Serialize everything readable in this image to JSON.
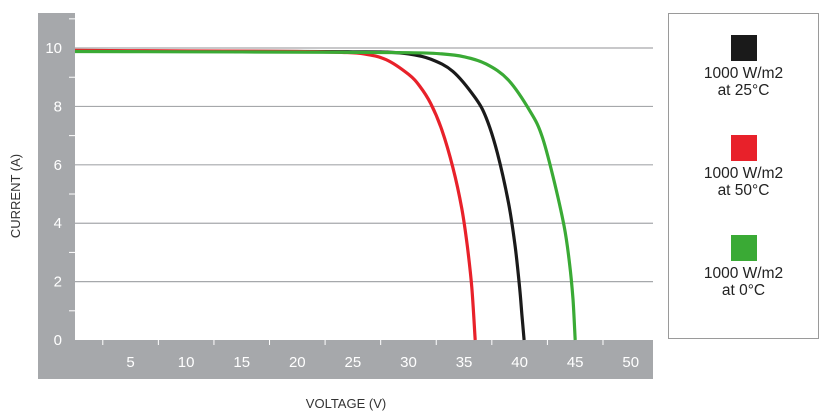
{
  "chart_data": {
    "type": "line",
    "xlabel": "VOLTAGE (V)",
    "ylabel": "CURRENT (A)",
    "xlim": [
      0,
      52
    ],
    "ylim": [
      0,
      11.2
    ],
    "x_ticks": [
      5,
      10,
      15,
      20,
      25,
      30,
      35,
      40,
      45,
      50
    ],
    "y_ticks": [
      0,
      2,
      4,
      6,
      8,
      10
    ],
    "grid": "horizontal",
    "legend_position": "right",
    "series": [
      {
        "name": "1000 W/m2\nat 25°C",
        "color": "#1a1a1a",
        "points": [
          [
            0,
            9.9
          ],
          [
            10,
            9.89
          ],
          [
            20,
            9.88
          ],
          [
            25,
            9.87
          ],
          [
            28,
            9.86
          ],
          [
            30,
            9.8
          ],
          [
            32,
            9.62
          ],
          [
            34,
            9.2
          ],
          [
            36,
            8.3
          ],
          [
            37,
            7.6
          ],
          [
            38,
            6.4
          ],
          [
            39,
            4.7
          ],
          [
            39.6,
            3.2
          ],
          [
            40,
            1.8
          ],
          [
            40.2,
            0.9
          ],
          [
            40.4,
            0
          ]
        ]
      },
      {
        "name": "1000 W/m2\nat 50°C",
        "color": "#e8212a",
        "points": [
          [
            0,
            9.92
          ],
          [
            10,
            9.9
          ],
          [
            20,
            9.88
          ],
          [
            24,
            9.85
          ],
          [
            26,
            9.8
          ],
          [
            28,
            9.6
          ],
          [
            30,
            9.1
          ],
          [
            31,
            8.7
          ],
          [
            32,
            8.1
          ],
          [
            33,
            7.2
          ],
          [
            34,
            5.9
          ],
          [
            34.8,
            4.5
          ],
          [
            35.3,
            3.2
          ],
          [
            35.7,
            1.8
          ],
          [
            36,
            0
          ]
        ]
      },
      {
        "name": "1000 W/m2\nat 0°C",
        "color": "#3aaa35",
        "points": [
          [
            0,
            9.88
          ],
          [
            10,
            9.87
          ],
          [
            20,
            9.86
          ],
          [
            30,
            9.84
          ],
          [
            33,
            9.8
          ],
          [
            35,
            9.7
          ],
          [
            37,
            9.45
          ],
          [
            39,
            8.9
          ],
          [
            41,
            7.8
          ],
          [
            42,
            7.0
          ],
          [
            43,
            5.6
          ],
          [
            44,
            3.9
          ],
          [
            44.5,
            2.6
          ],
          [
            44.8,
            1.4
          ],
          [
            45,
            0
          ]
        ]
      }
    ]
  }
}
